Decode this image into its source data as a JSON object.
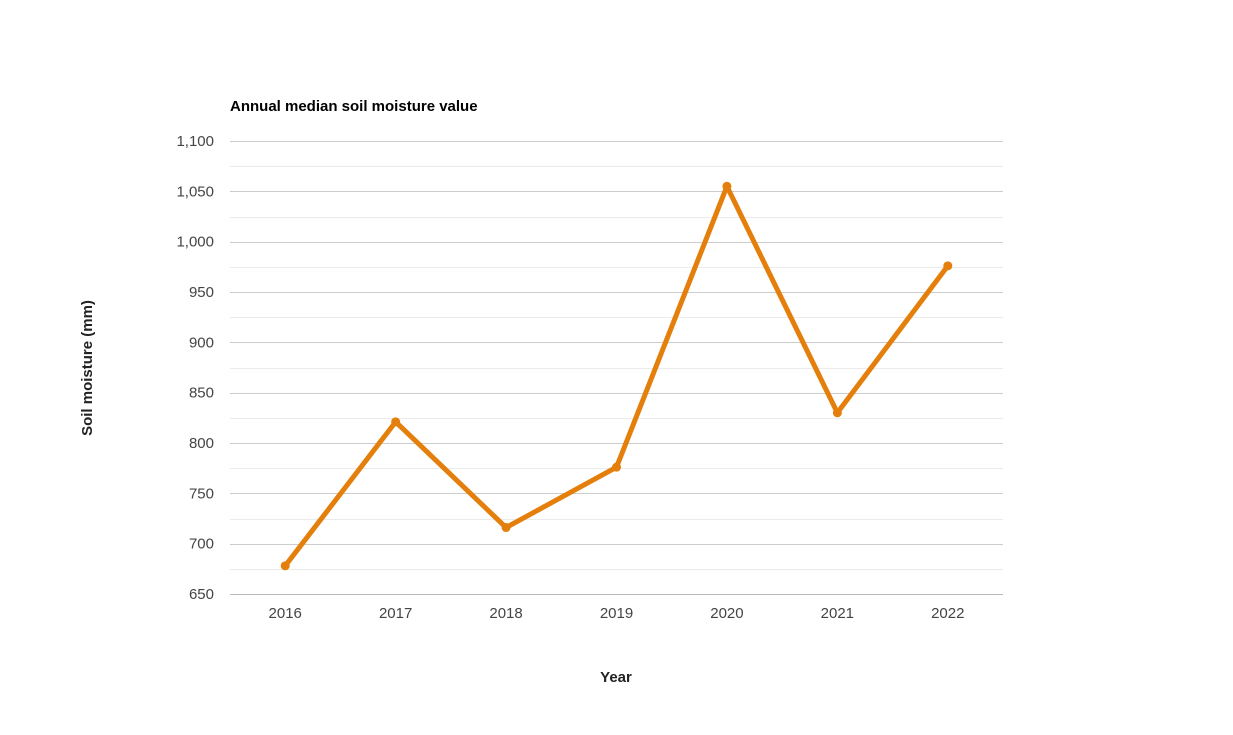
{
  "chart_data": {
    "type": "line",
    "title": "Annual median soil moisture value",
    "xlabel": "Year",
    "ylabel": "Soil moisture (mm)",
    "categories": [
      "2016",
      "2017",
      "2018",
      "2019",
      "2020",
      "2021",
      "2022"
    ],
    "series": [
      {
        "values": [
          678,
          821,
          716,
          776,
          1055,
          830,
          976
        ]
      }
    ],
    "ylim": [
      650,
      1100
    ],
    "yticks": [
      650,
      700,
      750,
      800,
      850,
      900,
      950,
      1000,
      1050,
      1100
    ],
    "ytick_labels": [
      "650",
      "700",
      "750",
      "800",
      "850",
      "900",
      "950",
      "1,000",
      "1,050",
      "1,100"
    ],
    "grid": true,
    "line_color": "#e47f0c",
    "major_grid_color": "#cccccc",
    "minor_grid_color": "#ebebeb"
  }
}
